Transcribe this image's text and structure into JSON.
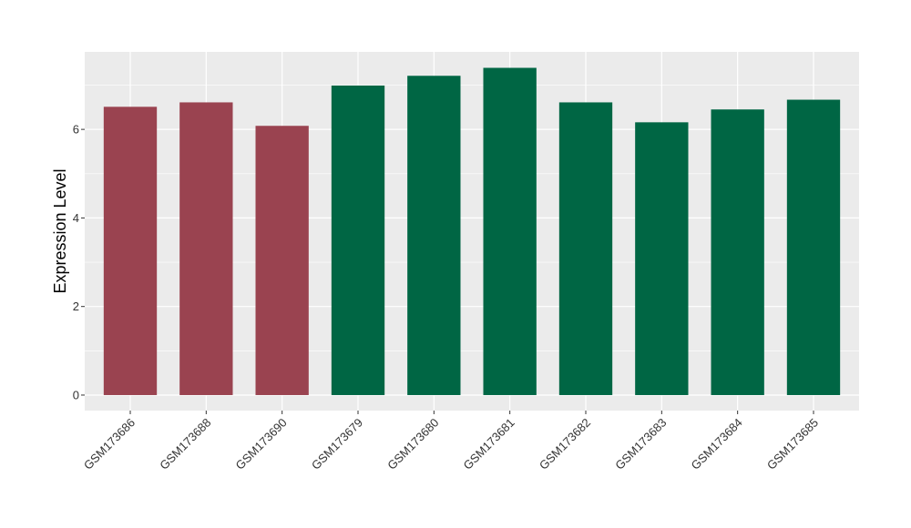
{
  "chart_data": {
    "type": "bar",
    "ylabel": "Expression Level",
    "xlabel": "",
    "categories": [
      "GSM173686",
      "GSM173688",
      "GSM173690",
      "GSM173679",
      "GSM173680",
      "GSM173681",
      "GSM173682",
      "GSM173683",
      "GSM173684",
      "GSM173685"
    ],
    "values": [
      6.51,
      6.61,
      6.08,
      6.99,
      7.21,
      7.39,
      6.61,
      6.16,
      6.45,
      6.67
    ],
    "bar_colors": [
      "#9a4350",
      "#9a4350",
      "#9a4350",
      "#006644",
      "#006644",
      "#006644",
      "#006644",
      "#006644",
      "#006644",
      "#006644"
    ],
    "yticks": [
      0,
      2,
      4,
      6
    ],
    "ylim": [
      -0.35,
      7.75
    ],
    "grid": true,
    "panel_background": "#ebebeb",
    "grid_color": "#ffffff"
  }
}
